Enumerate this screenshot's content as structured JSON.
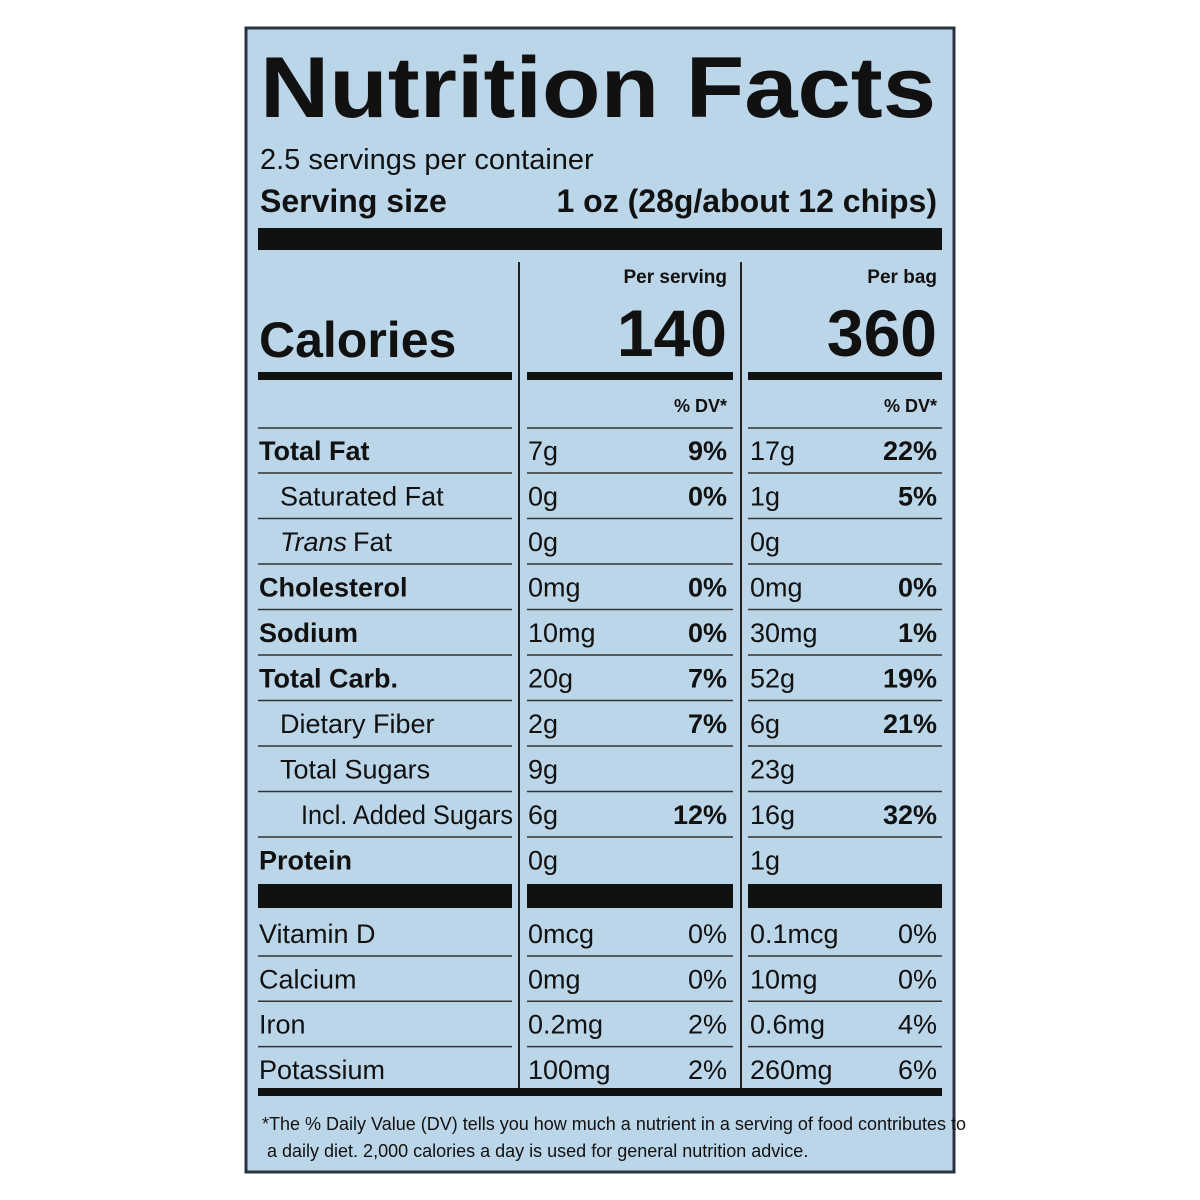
{
  "title": "Nutrition Facts",
  "servings": "2.5 servings per container",
  "serving_size": {
    "label": "Serving size",
    "value": "1 oz (28g/about 12 chips)"
  },
  "calories_label": "Calories",
  "columns": [
    {
      "header": "Per serving",
      "calories": "140",
      "dv_header": "% DV*"
    },
    {
      "header": "Per bag",
      "calories": "360",
      "dv_header": "% DV*"
    }
  ],
  "nutrients": [
    {
      "name": "Total Fat",
      "values": [
        [
          "7g",
          "9%"
        ],
        [
          "17g",
          "22%"
        ]
      ]
    },
    {
      "name": "Saturated Fat",
      "values": [
        [
          "0g",
          "0%"
        ],
        [
          "1g",
          "5%"
        ]
      ]
    },
    {
      "name_italic": "Trans",
      "name": "Fat",
      "values": [
        [
          "0g"
        ],
        [
          "0g"
        ]
      ]
    },
    {
      "name": "Cholesterol",
      "values": [
        [
          "0mg",
          "0%"
        ],
        [
          "0mg",
          "0%"
        ]
      ]
    },
    {
      "name": "Sodium",
      "values": [
        [
          "10mg",
          "0%"
        ],
        [
          "30mg",
          "1%"
        ]
      ]
    },
    {
      "name": "Total Carb.",
      "values": [
        [
          "20g",
          "7%"
        ],
        [
          "52g",
          "19%"
        ]
      ]
    },
    {
      "name": "Dietary Fiber",
      "values": [
        [
          "2g",
          "7%"
        ],
        [
          "6g",
          "21%"
        ]
      ]
    },
    {
      "name": "Total Sugars",
      "values": [
        [
          "9g"
        ],
        [
          "23g"
        ]
      ]
    },
    {
      "name": "Incl. Added Sugars",
      "values": [
        [
          "6g",
          "12%"
        ],
        [
          "16g",
          "32%"
        ]
      ]
    },
    {
      "name": "Protein",
      "values": [
        [
          "0g"
        ],
        [
          "1g"
        ]
      ]
    }
  ],
  "vitamins": [
    {
      "name": "Vitamin D",
      "values": [
        [
          "0mcg",
          "0%"
        ],
        [
          "0.1mcg",
          "0%"
        ]
      ]
    },
    {
      "name": "Calcium",
      "values": [
        [
          "0mg",
          "0%"
        ],
        [
          "10mg",
          "0%"
        ]
      ]
    },
    {
      "name": "Iron",
      "values": [
        [
          "0.2mg",
          "2%"
        ],
        [
          "0.6mg",
          "4%"
        ]
      ]
    },
    {
      "name": "Potassium",
      "values": [
        [
          "100mg",
          "2%"
        ],
        [
          "260mg",
          "6%"
        ]
      ]
    }
  ],
  "footnote": [
    "*The % Daily Value (DV) tells you how much a nutrient in a serving of food contributes to",
    "a daily diet. 2,000 calories a day is used for general nutrition advice."
  ]
}
